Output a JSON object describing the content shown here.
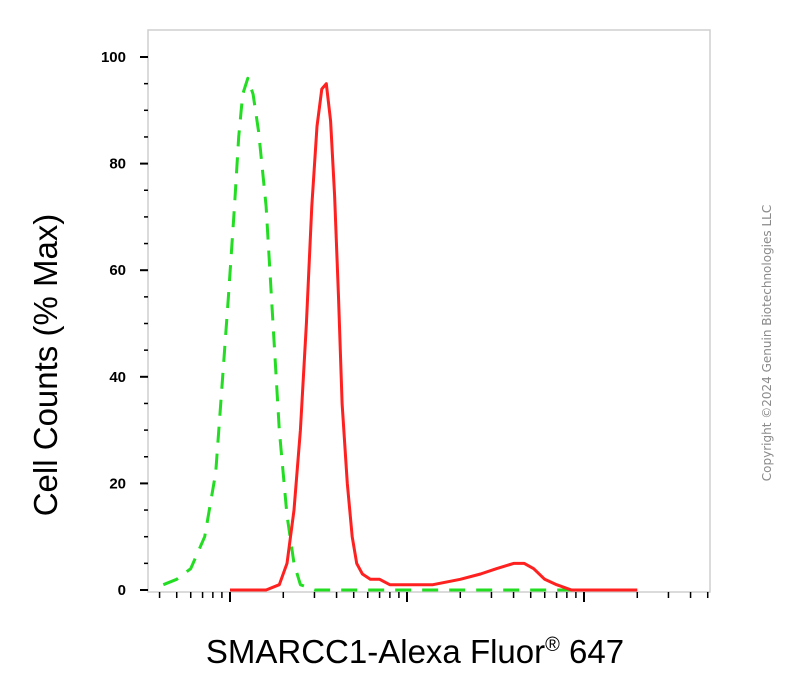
{
  "chart_data": {
    "type": "line",
    "xlabel_main": "SMARCC1-Alexa Fluor",
    "xlabel_reg": "®",
    "xlabel_tail": " 647",
    "ylabel": "Cell Counts (% Max)",
    "ylim": [
      0,
      100
    ],
    "yticks": [
      0,
      20,
      40,
      60,
      80,
      100
    ],
    "x_scale": "log",
    "xlim": [
      0.5,
      2000
    ],
    "series": [
      {
        "style": "dashed",
        "color": "#22dd22",
        "x": [
          1.5,
          2.6,
          3.4,
          4.2,
          5.0,
          6.0,
          7.2,
          8.3,
          9.0,
          9.8,
          10.6,
          11.2,
          11.8,
          12.6,
          13.5,
          14.5,
          16.0,
          17.5,
          19.0,
          21.0,
          23.0,
          25.0,
          30.0,
          40.0,
          60.0,
          100.0,
          300.0,
          1000.0,
          2000.0
        ],
        "y": [
          0,
          0,
          0.5,
          1,
          2,
          4,
          10,
          22,
          38,
          55,
          72,
          85,
          93,
          96,
          93,
          86,
          72,
          50,
          30,
          14,
          5,
          1,
          0,
          0,
          0,
          0,
          0,
          0,
          0
        ]
      },
      {
        "style": "solid",
        "color": "#ff2020",
        "x": [
          10.0,
          16.0,
          19.0,
          21.0,
          23.0,
          25.0,
          27.0,
          29.0,
          31.0,
          33.0,
          35.0,
          37.0,
          39.0,
          41.0,
          43.0,
          46.0,
          49.0,
          52.0,
          56.0,
          62.0,
          70.0,
          80.0,
          100.0,
          140.0,
          200.0,
          260.0,
          320.0,
          400.0,
          460.0,
          520.0,
          600.0,
          700.0,
          850.0,
          1000.0,
          1500.0,
          2000.0
        ],
        "y": [
          0,
          0,
          1,
          5,
          15,
          30,
          50,
          72,
          87,
          94,
          95,
          88,
          74,
          55,
          35,
          20,
          10,
          5,
          3,
          2,
          2,
          1,
          1,
          1,
          2,
          3,
          4,
          5,
          5,
          4,
          2,
          1,
          0,
          0,
          0,
          0
        ]
      }
    ]
  },
  "copyright": "Copyright ©2024 Genuin Biotechnologies LLC"
}
